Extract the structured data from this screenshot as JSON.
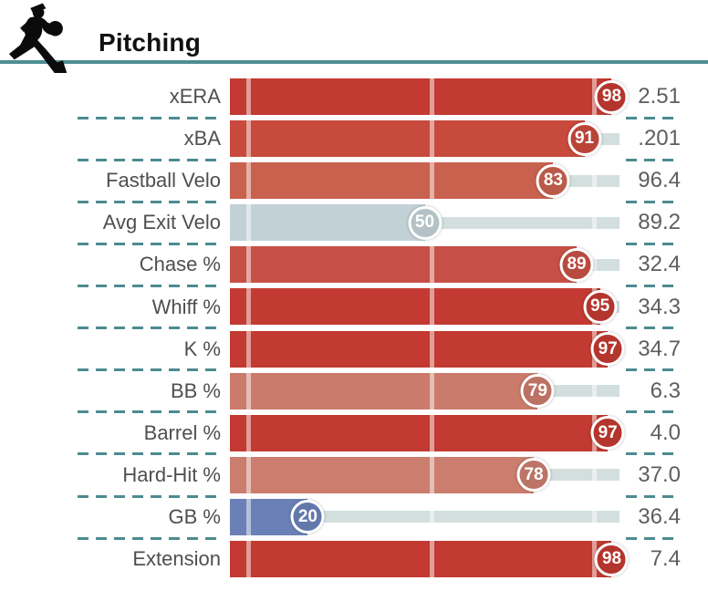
{
  "header": {
    "title": "Pitching",
    "icon": "pitcher-icon"
  },
  "colors": {
    "rule": "#4e8e93",
    "separator": "#4c8b90",
    "track": "#d3dfdf",
    "label_text": "#4f4f4f",
    "value_text": "#5e5e5e",
    "badge_text": "#ffffff",
    "title_text": "#111111"
  },
  "chart_data": {
    "type": "bar",
    "orientation": "horizontal",
    "title": "Pitching",
    "categories": [
      "xERA",
      "xBA",
      "Fastball Velo",
      "Avg Exit Velo",
      "Chase %",
      "Whiff %",
      "K %",
      "BB %",
      "Barrel %",
      "Hard-Hit %",
      "GB %",
      "Extension"
    ],
    "series": [
      {
        "name": "Percentile",
        "values": [
          98,
          91,
          83,
          50,
          89,
          95,
          97,
          79,
          97,
          78,
          20,
          98
        ]
      },
      {
        "name": "Stat Value",
        "values": [
          "2.51",
          ".201",
          "96.4",
          "89.2",
          "32.4",
          "34.3",
          "34.7",
          "6.3",
          "4.0",
          "37.0",
          "36.4",
          "7.4"
        ]
      }
    ],
    "xlim": [
      0,
      100
    ],
    "grid": "off",
    "legend": "off",
    "reference_line_offsets_pct": [
      4.7,
      51.5,
      93.2
    ],
    "color_scale_note": "red = high percentile, gray = average, blue = low percentile"
  },
  "rows": [
    {
      "label": "xERA",
      "percentile": 98,
      "value": "2.51",
      "color": "#c23a31"
    },
    {
      "label": "xBA",
      "percentile": 91,
      "value": ".201",
      "color": "#c74a3d"
    },
    {
      "label": "Fastball Velo",
      "percentile": 83,
      "value": "96.4",
      "color": "#c9614f"
    },
    {
      "label": "Avg Exit Velo",
      "percentile": 50,
      "value": "89.2",
      "color": "#c2d1d6"
    },
    {
      "label": "Chase %",
      "percentile": 89,
      "value": "32.4",
      "color": "#c65045"
    },
    {
      "label": "Whiff %",
      "percentile": 95,
      "value": "34.3",
      "color": "#c23a31"
    },
    {
      "label": "K %",
      "percentile": 97,
      "value": "34.7",
      "color": "#c23a31"
    },
    {
      "label": "BB %",
      "percentile": 79,
      "value": "6.3",
      "color": "#cb7b6b"
    },
    {
      "label": "Barrel %",
      "percentile": 97,
      "value": "4.0",
      "color": "#c23a31"
    },
    {
      "label": "Hard-Hit %",
      "percentile": 78,
      "value": "37.0",
      "color": "#cb7d6e"
    },
    {
      "label": "GB %",
      "percentile": 20,
      "value": "36.4",
      "color": "#6a80b7"
    },
    {
      "label": "Extension",
      "percentile": 98,
      "value": "7.4",
      "color": "#c23a31"
    }
  ]
}
